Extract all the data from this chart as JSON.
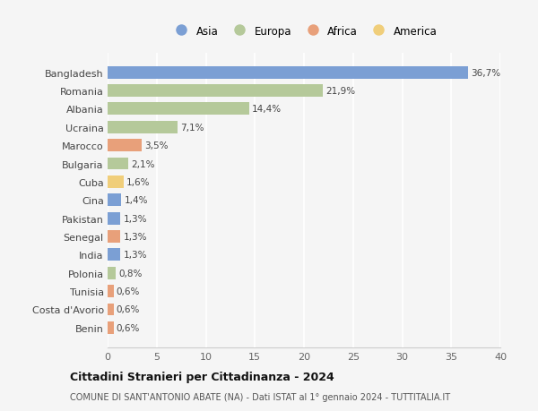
{
  "countries": [
    "Bangladesh",
    "Romania",
    "Albania",
    "Ucraina",
    "Marocco",
    "Bulgaria",
    "Cuba",
    "Cina",
    "Pakistan",
    "Senegal",
    "India",
    "Polonia",
    "Tunisia",
    "Costa d'Avorio",
    "Benin"
  ],
  "values": [
    36.7,
    21.9,
    14.4,
    7.1,
    3.5,
    2.1,
    1.6,
    1.4,
    1.3,
    1.3,
    1.3,
    0.8,
    0.6,
    0.6,
    0.6
  ],
  "labels": [
    "36,7%",
    "21,9%",
    "14,4%",
    "7,1%",
    "3,5%",
    "2,1%",
    "1,6%",
    "1,4%",
    "1,3%",
    "1,3%",
    "1,3%",
    "0,8%",
    "0,6%",
    "0,6%",
    "0,6%"
  ],
  "continents": [
    "Asia",
    "Europa",
    "Europa",
    "Europa",
    "Africa",
    "Europa",
    "America",
    "Asia",
    "Asia",
    "Africa",
    "Asia",
    "Europa",
    "Africa",
    "Africa",
    "Africa"
  ],
  "continent_colors": {
    "Asia": "#7b9fd4",
    "Europa": "#b5c99a",
    "Africa": "#e8a07a",
    "America": "#f0ce7a"
  },
  "legend_order": [
    "Asia",
    "Europa",
    "Africa",
    "America"
  ],
  "title": "Cittadini Stranieri per Cittadinanza - 2024",
  "subtitle": "COMUNE DI SANT'ANTONIO ABATE (NA) - Dati ISTAT al 1° gennaio 2024 - TUTTITALIA.IT",
  "xlim": [
    0,
    40
  ],
  "xticks": [
    0,
    5,
    10,
    15,
    20,
    25,
    30,
    35,
    40
  ],
  "bg_color": "#f5f5f5",
  "plot_bg_color": "#f5f5f5",
  "grid_color": "#ffffff",
  "bar_height": 0.68
}
